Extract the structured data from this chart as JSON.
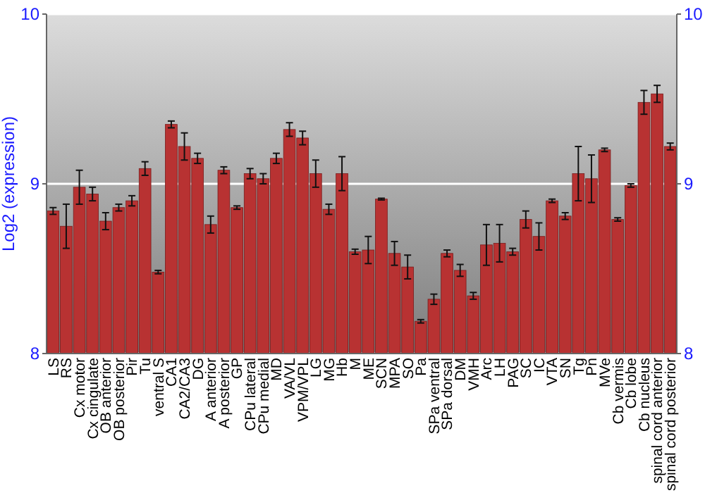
{
  "chart_data": {
    "type": "bar",
    "ylabel": "Log2 (expression)",
    "categories": [
      "LS",
      "RS",
      "Cx motor",
      "Cx cingulate",
      "OB anterior",
      "OB posterior",
      "Pir",
      "Tu",
      "ventral S",
      "CA1",
      "CA2/CA3",
      "DG",
      "A anterior",
      "A posterior",
      "GP",
      "CPu lateral",
      "CPu medial",
      "MD",
      "VA/VL",
      "VPM/VPL",
      "LG",
      "MG",
      "Hb",
      "M",
      "ME",
      "SCN",
      "MPA",
      "SO",
      "Pa",
      "SPa ventral",
      "SPa dorsal",
      "DM",
      "VMH",
      "Arc",
      "LH",
      "PAG",
      "SC",
      "IC",
      "VTA",
      "SN",
      "Tg",
      "Pn",
      "MVe",
      "Cb vermis",
      "Cb lobe",
      "Cb nucleus",
      "spinal cord anterior",
      "spinal cord posterior"
    ],
    "values": [
      8.84,
      8.75,
      8.98,
      8.94,
      8.78,
      8.86,
      8.9,
      9.09,
      8.48,
      9.35,
      9.22,
      9.15,
      8.76,
      9.08,
      8.86,
      9.06,
      9.03,
      9.15,
      9.32,
      9.27,
      9.06,
      8.85,
      9.06,
      8.6,
      8.61,
      8.91,
      8.59,
      8.51,
      8.19,
      8.32,
      8.59,
      8.49,
      8.34,
      8.64,
      8.65,
      8.6,
      8.79,
      8.69,
      8.9,
      8.81,
      9.06,
      9.03,
      9.2,
      8.79,
      8.99,
      9.48,
      9.53,
      9.22
    ],
    "errors": [
      0.02,
      0.13,
      0.1,
      0.04,
      0.05,
      0.02,
      0.03,
      0.04,
      0.01,
      0.02,
      0.08,
      0.03,
      0.05,
      0.02,
      0.01,
      0.03,
      0.03,
      0.03,
      0.04,
      0.04,
      0.08,
      0.03,
      0.1,
      0.015,
      0.08,
      0.005,
      0.07,
      0.07,
      0.01,
      0.03,
      0.02,
      0.035,
      0.02,
      0.12,
      0.11,
      0.02,
      0.05,
      0.08,
      0.01,
      0.02,
      0.16,
      0.14,
      0.01,
      0.01,
      0.01,
      0.07,
      0.05,
      0.02
    ],
    "color": "#b83232",
    "ylim": [
      8,
      10
    ],
    "yticks": [
      8,
      9,
      10
    ],
    "y2lim": [
      8,
      10
    ],
    "y2ticks": [
      8,
      9,
      10
    ],
    "grid": "y"
  }
}
